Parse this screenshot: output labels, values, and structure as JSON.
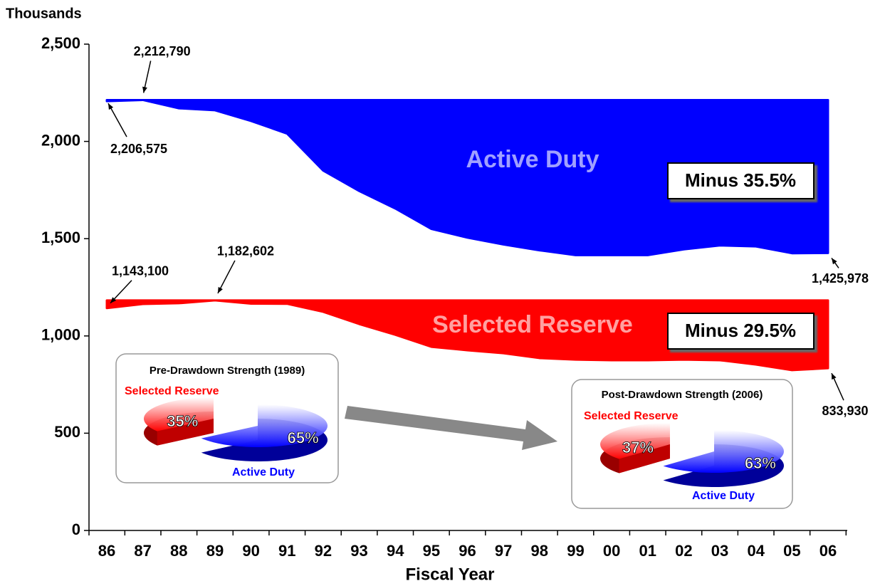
{
  "chart_data": [
    {
      "type": "area",
      "y_label": "Thousands",
      "x_label": "Fiscal Year",
      "categories": [
        "86",
        "87",
        "88",
        "89",
        "90",
        "91",
        "92",
        "93",
        "94",
        "95",
        "96",
        "97",
        "98",
        "99",
        "00",
        "01",
        "02",
        "03",
        "04",
        "05",
        "06"
      ],
      "ylim": [
        0,
        2500
      ],
      "yticks": [
        {
          "value": 0,
          "label": "0"
        },
        500,
        {
          "value": 1000,
          "label": "1,000"
        },
        {
          "value": 1500,
          "label": "1,500"
        },
        {
          "value": 2000,
          "label": "2,000"
        },
        {
          "value": 2500,
          "label": "2,500"
        }
      ],
      "series": [
        {
          "name": "Active Duty",
          "color": "#0000ff",
          "values": [
            2206.575,
            2212.79,
            2170,
            2160,
            2105,
            2040,
            1850,
            1745,
            1655,
            1550,
            1505,
            1470,
            1440,
            1415,
            1415,
            1415,
            1445,
            1465,
            1460,
            1425,
            1425.978
          ],
          "value_labels": [
            "2,206,575",
            "2,212,790",
            null,
            null,
            null,
            null,
            null,
            null,
            null,
            null,
            null,
            null,
            null,
            null,
            null,
            null,
            null,
            null,
            null,
            null,
            "1,425,978"
          ]
        },
        {
          "name": "Selected Reserve",
          "color": "#ff0000",
          "values": [
            1143.1,
            1164,
            1168,
            1182.602,
            1166,
            1165,
            1124,
            1061,
            1006,
            944,
            926,
            911,
            886,
            878,
            875,
            875,
            878,
            875,
            853,
            824,
            833.93
          ],
          "value_labels": [
            "1,143,100",
            null,
            null,
            "1,182,602",
            null,
            null,
            null,
            null,
            null,
            null,
            null,
            null,
            null,
            null,
            null,
            null,
            null,
            null,
            null,
            null,
            "833,930"
          ]
        }
      ],
      "annotations": [
        "Minus 35.5%",
        "Minus 29.5%"
      ]
    },
    {
      "type": "pie",
      "title": "Pre-Drawdown Strength (1989)",
      "categories": [
        "Selected Reserve",
        "Active Duty"
      ],
      "colors": [
        "#ff0000",
        "#0000ff"
      ],
      "values": [
        35,
        65
      ],
      "value_labels": [
        "35%",
        "65%"
      ]
    },
    {
      "type": "pie",
      "title": "Post-Drawdown Strength (2006)",
      "categories": [
        "Selected Reserve",
        "Active Duty"
      ],
      "colors": [
        "#ff0000",
        "#0000ff"
      ],
      "values": [
        37,
        63
      ],
      "value_labels": [
        "37%",
        "63%"
      ]
    }
  ]
}
